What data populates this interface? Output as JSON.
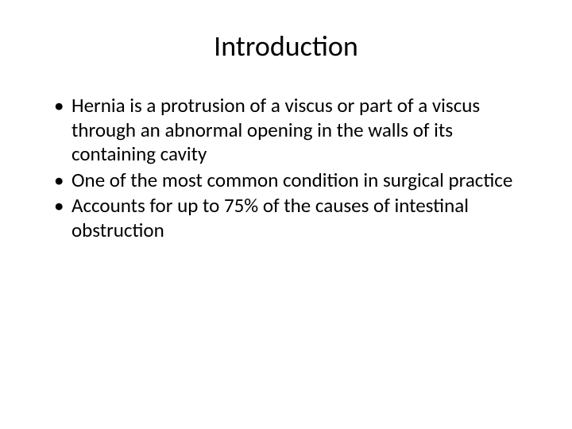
{
  "slide": {
    "title": "Introduction",
    "title_fontsize": 36,
    "body_fontsize": 25,
    "text_color": "#000000",
    "background_color": "#ffffff",
    "bullets": [
      "Hernia is a protrusion of a viscus or part of a viscus through an abnormal opening in the walls of its containing cavity",
      "One of the most common condition in surgical practice",
      "Accounts for up to 75% of the causes of intestinal obstruction"
    ]
  }
}
